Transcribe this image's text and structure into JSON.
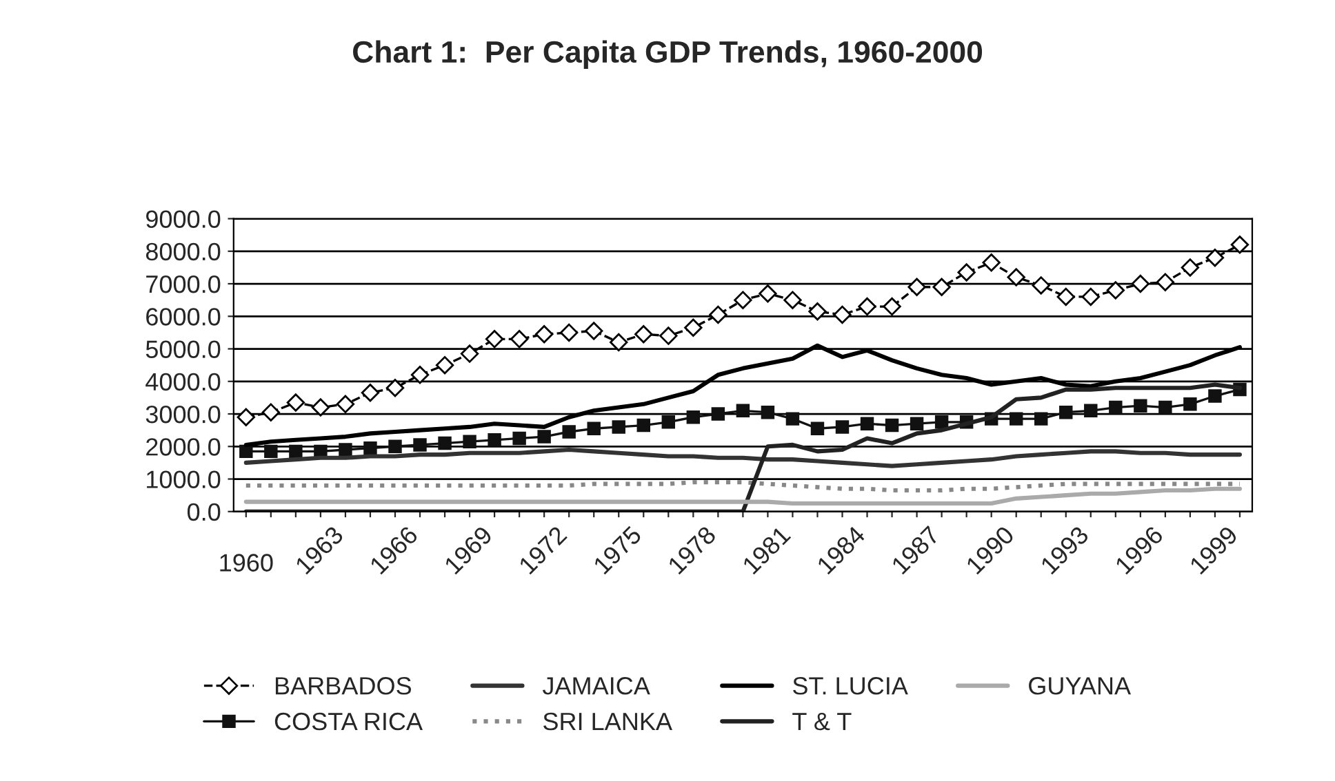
{
  "chart_data": {
    "type": "line",
    "title": "Chart 1:  Per Capita GDP Trends, 1960-2000",
    "categories": [
      "1960",
      null,
      null,
      "1963",
      null,
      null,
      "1966",
      null,
      null,
      "1969",
      null,
      null,
      "1972",
      null,
      null,
      "1975",
      null,
      null,
      "1978",
      null,
      null,
      "1981",
      null,
      null,
      "1984",
      null,
      null,
      "1987",
      null,
      null,
      "1990",
      null,
      null,
      "1993",
      null,
      null,
      "1996",
      null,
      null,
      "1999",
      null
    ],
    "ylim": [
      0,
      9000
    ],
    "yticks": [
      {
        "value": 0,
        "label": "0.0"
      },
      {
        "value": 1000,
        "label": "1000.0"
      },
      {
        "value": 2000,
        "label": "2000.0"
      },
      {
        "value": 3000,
        "label": "3000.0"
      },
      {
        "value": 4000,
        "label": "4000.0"
      },
      {
        "value": 5000,
        "label": "5000.0"
      },
      {
        "value": 6000,
        "label": "6000.0"
      },
      {
        "value": 7000,
        "label": "7000.0"
      },
      {
        "value": 8000,
        "label": "8000.0"
      },
      {
        "value": 9000,
        "label": "9000.0"
      }
    ],
    "grid": "y",
    "legend": "bottom",
    "series": [
      {
        "name": "BARBADOS",
        "color": "#000000",
        "marker": "diamond",
        "line_style": "dashed",
        "values": [
          2900,
          3050,
          3350,
          3200,
          3300,
          3650,
          3800,
          4200,
          4500,
          4850,
          5300,
          5300,
          5450,
          5500,
          5550,
          5200,
          5450,
          5400,
          5650,
          6050,
          6500,
          6700,
          6500,
          6150,
          6050,
          6300,
          6300,
          6900,
          6900,
          7350,
          7650,
          7200,
          6950,
          6600,
          6600,
          6800,
          7000,
          7050,
          7500,
          7800,
          8200
        ]
      },
      {
        "name": "COSTA RICA",
        "color": "#111111",
        "marker": "square",
        "line_style": "solid",
        "values": [
          1850,
          1850,
          1850,
          1850,
          1900,
          1950,
          2000,
          2050,
          2100,
          2150,
          2200,
          2250,
          2300,
          2450,
          2550,
          2600,
          2650,
          2750,
          2900,
          3000,
          3100,
          3050,
          2850,
          2550,
          2600,
          2700,
          2650,
          2700,
          2750,
          2750,
          2850,
          2850,
          2850,
          3050,
          3100,
          3200,
          3250,
          3200,
          3300,
          3550,
          3750
        ]
      },
      {
        "name": "JAMAICA",
        "color": "#333333",
        "marker": "none",
        "line_style": "solid",
        "values": [
          1500,
          1550,
          1600,
          1650,
          1650,
          1700,
          1700,
          1750,
          1750,
          1800,
          1800,
          1800,
          1850,
          1900,
          1850,
          1800,
          1750,
          1700,
          1700,
          1650,
          1650,
          1600,
          1600,
          1550,
          1500,
          1450,
          1400,
          1450,
          1500,
          1550,
          1600,
          1700,
          1750,
          1800,
          1850,
          1850,
          1800,
          1800,
          1750,
          1750,
          1750
        ]
      },
      {
        "name": "SRI LANKA",
        "color": "#888888",
        "marker": "none",
        "line_style": "dotted",
        "values": [
          800,
          800,
          800,
          800,
          800,
          800,
          800,
          800,
          800,
          800,
          800,
          800,
          800,
          800,
          850,
          850,
          850,
          850,
          900,
          900,
          900,
          850,
          800,
          750,
          700,
          700,
          650,
          650,
          650,
          700,
          700,
          750,
          800,
          850,
          850,
          850,
          850,
          850,
          850,
          850,
          850
        ]
      },
      {
        "name": "ST. LUCIA",
        "color": "#000000",
        "marker": "none",
        "line_style": "solid",
        "values": [
          2050,
          2150,
          2200,
          2250,
          2300,
          2400,
          2450,
          2500,
          2550,
          2600,
          2700,
          2650,
          2600,
          2900,
          3100,
          3200,
          3300,
          3500,
          3700,
          4200,
          4400,
          4550,
          4700,
          5100,
          4750,
          4950,
          4650,
          4400,
          4200,
          4100,
          3900,
          4000,
          4100,
          3900,
          3850,
          4000,
          4100,
          4300,
          4500,
          4800,
          5050
        ]
      },
      {
        "name": "T & T",
        "color": "#222222",
        "marker": "none",
        "line_style": "solid",
        "values": [
          0,
          0,
          0,
          0,
          0,
          0,
          0,
          0,
          0,
          0,
          0,
          0,
          0,
          0,
          0,
          0,
          0,
          0,
          0,
          0,
          0,
          2000,
          2050,
          1850,
          1900,
          2250,
          2100,
          2400,
          2500,
          2700,
          2900,
          3450,
          3500,
          3750,
          3750,
          3800,
          3800,
          3800,
          3800,
          3900,
          3800
        ]
      },
      {
        "name": "GUYANA",
        "color": "#aaaaaa",
        "marker": "none",
        "line_style": "solid",
        "values": [
          300,
          300,
          300,
          300,
          300,
          300,
          300,
          300,
          300,
          300,
          300,
          300,
          300,
          300,
          300,
          300,
          300,
          300,
          300,
          300,
          300,
          300,
          250,
          250,
          250,
          250,
          250,
          250,
          250,
          250,
          250,
          400,
          450,
          500,
          550,
          550,
          600,
          650,
          650,
          700,
          700
        ]
      }
    ]
  }
}
